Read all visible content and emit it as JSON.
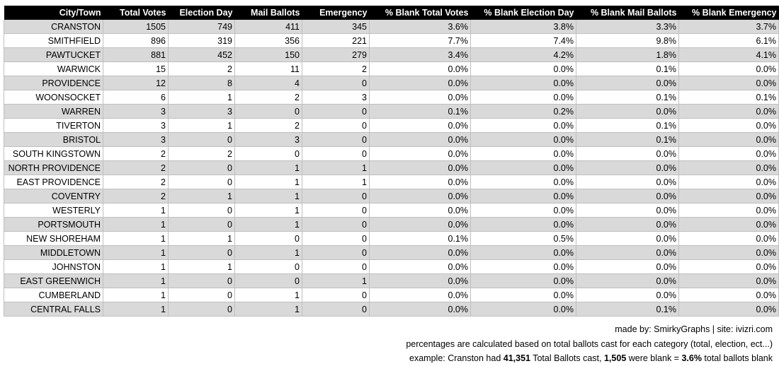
{
  "chart_data": {
    "type": "table",
    "columns": [
      "City/Town",
      "Total Votes",
      "Election Day",
      "Mail Ballots",
      "Emergency",
      "% Blank Total Votes",
      "% Blank Election Day",
      "% Blank Mail Ballots",
      "% Blank Emergency"
    ],
    "rows": [
      [
        "CRANSTON",
        "1505",
        "749",
        "411",
        "345",
        "3.6%",
        "3.8%",
        "3.3%",
        "3.7%"
      ],
      [
        "SMITHFIELD",
        "896",
        "319",
        "356",
        "221",
        "7.7%",
        "7.4%",
        "9.8%",
        "6.1%"
      ],
      [
        "PAWTUCKET",
        "881",
        "452",
        "150",
        "279",
        "3.4%",
        "4.2%",
        "1.8%",
        "4.1%"
      ],
      [
        "WARWICK",
        "15",
        "2",
        "11",
        "2",
        "0.0%",
        "0.0%",
        "0.1%",
        "0.0%"
      ],
      [
        "PROVIDENCE",
        "12",
        "8",
        "4",
        "0",
        "0.0%",
        "0.0%",
        "0.0%",
        "0.0%"
      ],
      [
        "WOONSOCKET",
        "6",
        "1",
        "2",
        "3",
        "0.0%",
        "0.0%",
        "0.1%",
        "0.1%"
      ],
      [
        "WARREN",
        "3",
        "3",
        "0",
        "0",
        "0.1%",
        "0.2%",
        "0.0%",
        "0.0%"
      ],
      [
        "TIVERTON",
        "3",
        "1",
        "2",
        "0",
        "0.0%",
        "0.0%",
        "0.1%",
        "0.0%"
      ],
      [
        "BRISTOL",
        "3",
        "0",
        "3",
        "0",
        "0.0%",
        "0.0%",
        "0.1%",
        "0.0%"
      ],
      [
        "SOUTH KINGSTOWN",
        "2",
        "2",
        "0",
        "0",
        "0.0%",
        "0.0%",
        "0.0%",
        "0.0%"
      ],
      [
        "NORTH PROVIDENCE",
        "2",
        "0",
        "1",
        "1",
        "0.0%",
        "0.0%",
        "0.0%",
        "0.0%"
      ],
      [
        "EAST PROVIDENCE",
        "2",
        "0",
        "1",
        "1",
        "0.0%",
        "0.0%",
        "0.0%",
        "0.0%"
      ],
      [
        "COVENTRY",
        "2",
        "1",
        "1",
        "0",
        "0.0%",
        "0.0%",
        "0.0%",
        "0.0%"
      ],
      [
        "WESTERLY",
        "1",
        "0",
        "1",
        "0",
        "0.0%",
        "0.0%",
        "0.0%",
        "0.0%"
      ],
      [
        "PORTSMOUTH",
        "1",
        "0",
        "1",
        "0",
        "0.0%",
        "0.0%",
        "0.0%",
        "0.0%"
      ],
      [
        "NEW SHOREHAM",
        "1",
        "1",
        "0",
        "0",
        "0.1%",
        "0.5%",
        "0.0%",
        "0.0%"
      ],
      [
        "MIDDLETOWN",
        "1",
        "0",
        "1",
        "0",
        "0.0%",
        "0.0%",
        "0.0%",
        "0.0%"
      ],
      [
        "JOHNSTON",
        "1",
        "1",
        "0",
        "0",
        "0.0%",
        "0.0%",
        "0.0%",
        "0.0%"
      ],
      [
        "EAST GREENWICH",
        "1",
        "0",
        "0",
        "1",
        "0.0%",
        "0.0%",
        "0.0%",
        "0.0%"
      ],
      [
        "CUMBERLAND",
        "1",
        "0",
        "1",
        "0",
        "0.0%",
        "0.0%",
        "0.0%",
        "0.0%"
      ],
      [
        "CENTRAL FALLS",
        "1",
        "0",
        "1",
        "0",
        "0.0%",
        "0.0%",
        "0.1%",
        "0.0%"
      ]
    ]
  },
  "footer": {
    "credit": "made by: SmirkyGraphs  |  site: ivizri.com",
    "note": "percentages are calculated based on total ballots cast for each category (total, election, ect...)",
    "example": {
      "prefix": "example: Cranston had ",
      "total_cast": "41,351",
      "middle1": " Total Ballots cast, ",
      "blank_count": "1,505",
      "middle2": " were blank = ",
      "blank_pct": "3.6%",
      "suffix": " total ballots blank"
    }
  },
  "colors": {
    "header_bg": "#000000",
    "header_text": "#ffffff",
    "band_row": "#d9d9d9",
    "plain_row": "#ffffff",
    "grid": "#bfbfbf"
  }
}
